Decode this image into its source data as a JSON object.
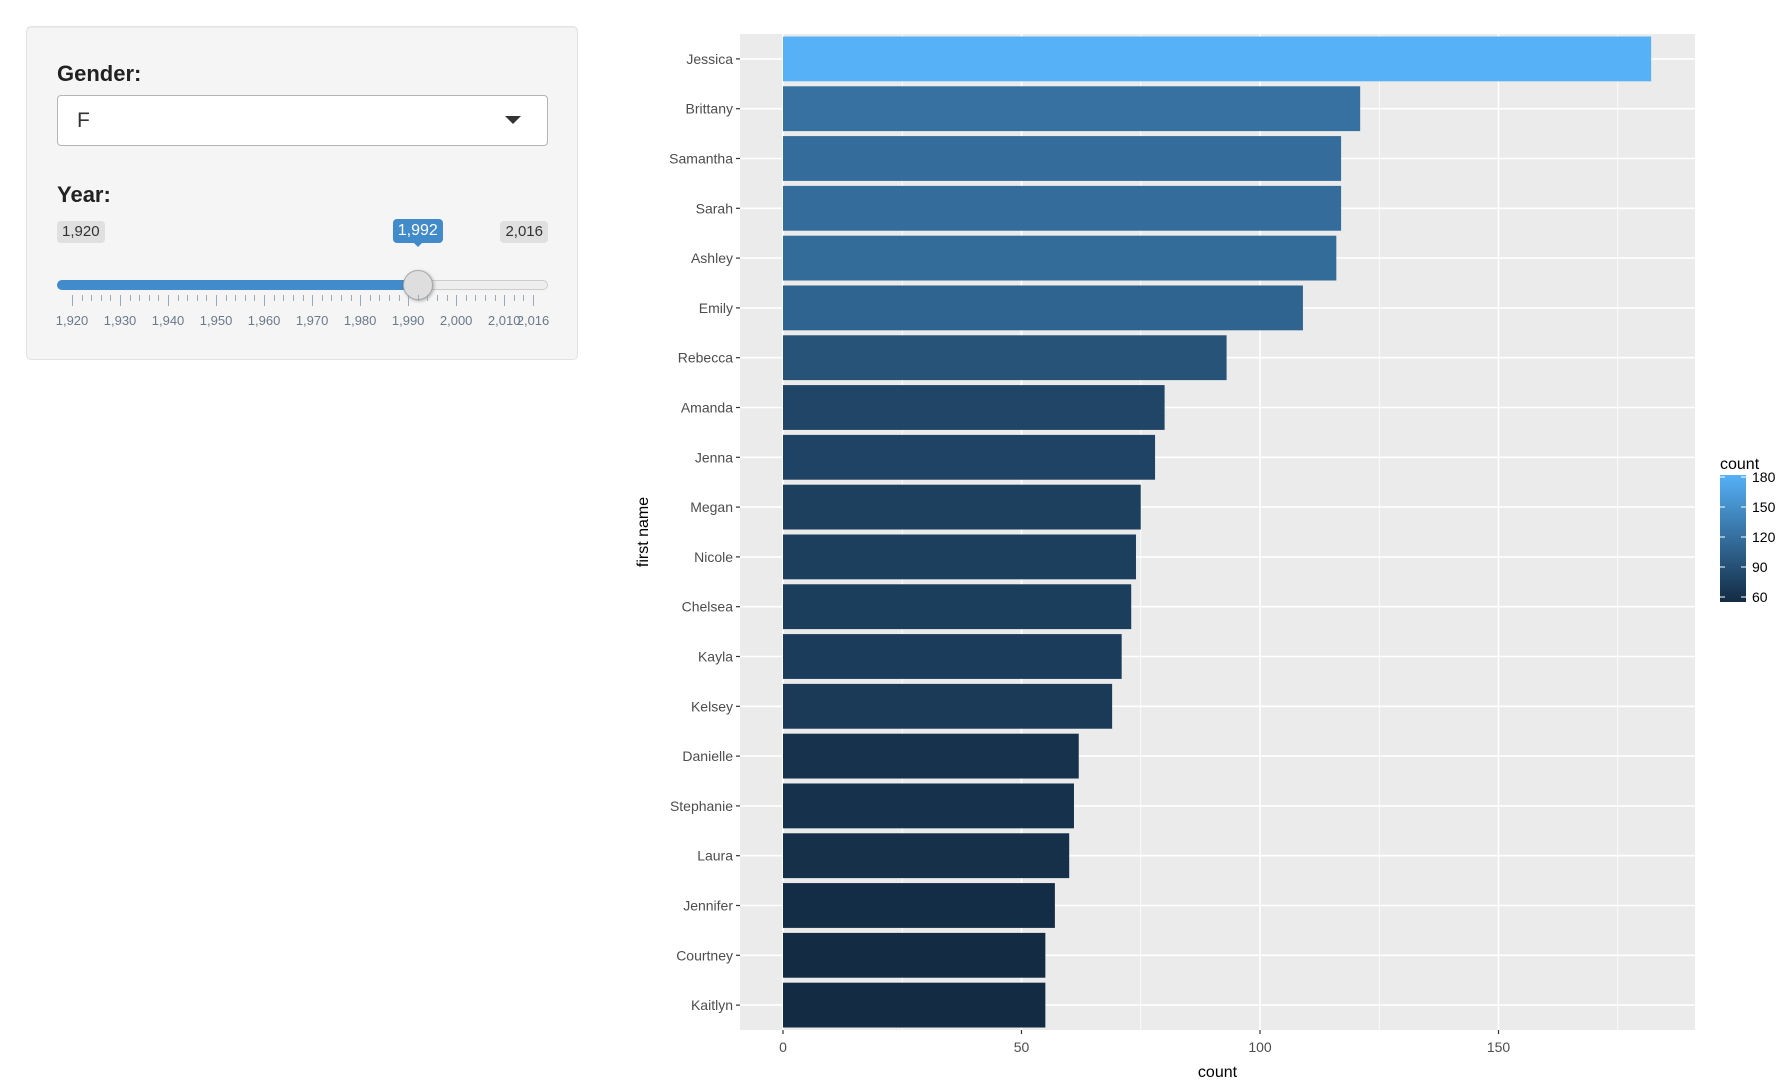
{
  "controls": {
    "gender": {
      "label": "Gender:",
      "selected": "F"
    },
    "year": {
      "label": "Year:",
      "min": 1920,
      "max": 2016,
      "value": 1992,
      "min_label": "1,920",
      "max_label": "2,016",
      "value_label": "1,992",
      "tick_labels": [
        "1,920",
        "1,930",
        "1,940",
        "1,950",
        "1,960",
        "1,970",
        "1,980",
        "1,990",
        "2,000",
        "2,010",
        "2,016"
      ]
    }
  },
  "colors": {
    "slider_accent": "#428bca",
    "panel_bg": "#f5f5f5",
    "plot_bg": "#ebebeb",
    "grid": "#ffffff",
    "fill_low": "#132b43",
    "fill_high": "#56b1f7"
  },
  "chart_data": {
    "type": "bar",
    "orientation": "horizontal",
    "xlabel": "count",
    "ylabel": "first name",
    "xlim": [
      0,
      190
    ],
    "x_ticks": [
      0,
      50,
      100,
      150
    ],
    "grid": true,
    "categories": [
      "Jessica",
      "Brittany",
      "Samantha",
      "Sarah",
      "Ashley",
      "Emily",
      "Rebecca",
      "Amanda",
      "Jenna",
      "Megan",
      "Nicole",
      "Chelsea",
      "Kayla",
      "Kelsey",
      "Danielle",
      "Stephanie",
      "Laura",
      "Jennifer",
      "Courtney",
      "Kaitlyn"
    ],
    "values": [
      182,
      121,
      117,
      117,
      116,
      109,
      93,
      80,
      78,
      75,
      74,
      73,
      71,
      69,
      62,
      61,
      60,
      57,
      55,
      55
    ],
    "legend": {
      "title": "count",
      "position": "right",
      "ticks": [
        60,
        90,
        120,
        150,
        180
      ],
      "range": [
        55,
        182
      ]
    }
  }
}
